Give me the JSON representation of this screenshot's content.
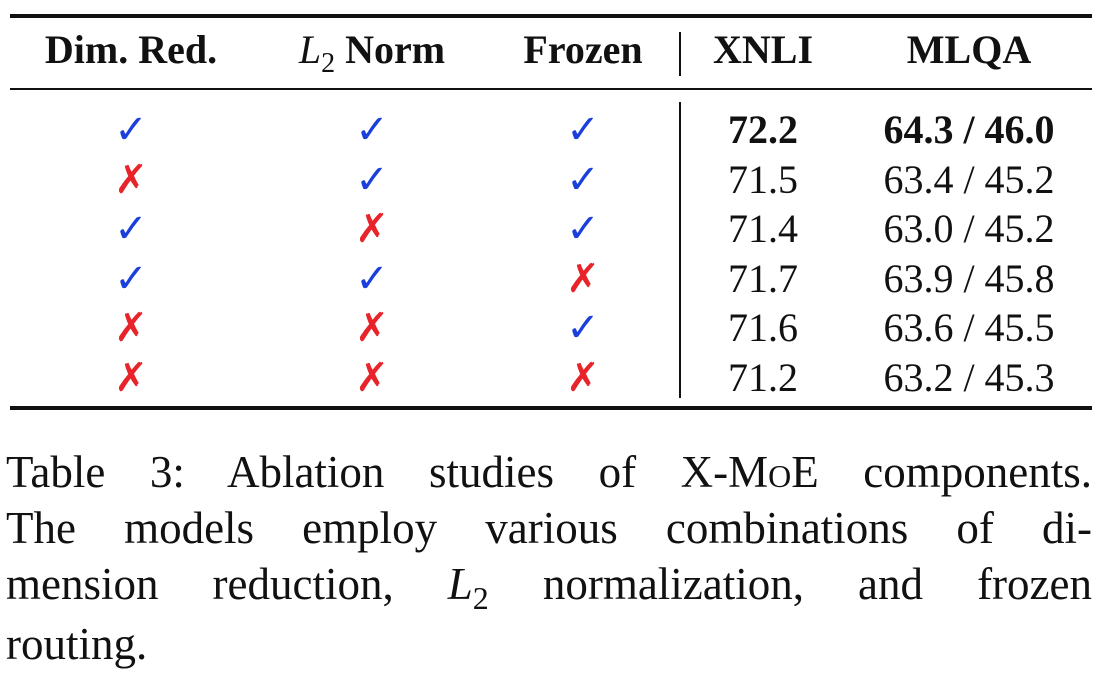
{
  "table": {
    "headers": {
      "dim_red": "Dim. Red.",
      "l2_norm_symbol": "L",
      "l2_norm_sub": "2",
      "l2_norm_word": "Norm",
      "frozen": "Frozen",
      "xnli": "XNLI",
      "mlqa": "MLQA"
    },
    "rows": [
      {
        "dim_red": "✓",
        "l2": "✓",
        "frozen": "✓",
        "xnli": "72.2",
        "mlqa": "64.3 / 46.0",
        "bold": true
      },
      {
        "dim_red": "✗",
        "l2": "✓",
        "frozen": "✓",
        "xnli": "71.5",
        "mlqa": "63.4 / 45.2",
        "bold": false
      },
      {
        "dim_red": "✓",
        "l2": "✗",
        "frozen": "✓",
        "xnli": "71.4",
        "mlqa": "63.0 / 45.2",
        "bold": false
      },
      {
        "dim_red": "✓",
        "l2": "✓",
        "frozen": "✗",
        "xnli": "71.7",
        "mlqa": "63.9 / 45.8",
        "bold": false
      },
      {
        "dim_red": "✗",
        "l2": "✗",
        "frozen": "✓",
        "xnli": "71.6",
        "mlqa": "63.6 / 45.5",
        "bold": false
      },
      {
        "dim_red": "✗",
        "l2": "✗",
        "frozen": "✗",
        "xnli": "71.2",
        "mlqa": "63.2 / 45.3",
        "bold": false
      }
    ],
    "colors": {
      "check": "#1a3fdc",
      "cross": "#e8242a"
    }
  },
  "caption": {
    "line1_a": "Table 3: Ablation studies of X-",
    "line1_moe": "MoE",
    "line1_b": " components.",
    "line2": "The models employ various combinations of di-",
    "line3_a": "mension reduction, ",
    "line3_symbol": "L",
    "line3_sub": "2",
    "line3_b": " normalization, and frozen",
    "line4": "routing."
  }
}
